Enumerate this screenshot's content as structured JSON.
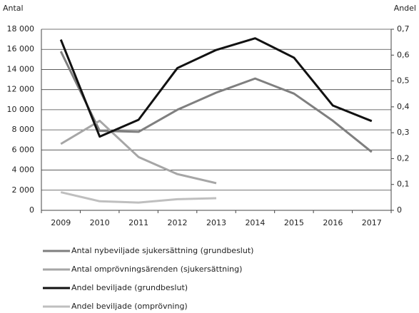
{
  "chart_data": {
    "type": "line",
    "y_label": "Antal",
    "y2_label": "Andel",
    "categories": [
      "2009",
      "2010",
      "2011",
      "2012",
      "2013",
      "2014",
      "2015",
      "2016",
      "2017"
    ],
    "series": [
      {
        "name": "Antal nybeviljade sjukersättning (grundbeslut)",
        "color": "#7f7f7f",
        "values": [
          15800,
          7900,
          7800,
          10000,
          11700,
          13100,
          11600,
          8900,
          5800
        ]
      },
      {
        "name": "Antal omprövningsärenden (sjukersättning)",
        "color": "#a6a6a6",
        "values": [
          6600,
          8900,
          5300,
          3600,
          2700,
          null,
          null,
          null,
          null
        ]
      },
      {
        "name": "Andel beviljade (grundbeslut)",
        "color": "#111111",
        "axis": "y2",
        "values": [
          0.66,
          0.285,
          0.35,
          0.55,
          0.62,
          0.665,
          0.59,
          0.405,
          0.345
        ]
      },
      {
        "name": "Andel beviljade (omprövning)",
        "color": "#bfbfbf",
        "axis": "y2",
        "values": [
          0.07,
          0.035,
          0.03,
          0.043,
          0.047,
          null,
          null,
          null,
          null
        ]
      }
    ],
    "ylim": [
      0,
      18000
    ],
    "yticks": [
      0,
      {
        "value": 2000,
        "label": "2 000"
      },
      {
        "value": 4000,
        "label": "4 000"
      },
      {
        "value": 6000,
        "label": "6 000"
      },
      {
        "value": 8000,
        "label": "8 000"
      },
      {
        "value": 10000,
        "label": "10 000"
      },
      {
        "value": 12000,
        "label": "12 000"
      },
      {
        "value": 14000,
        "label": "14 000"
      },
      {
        "value": 16000,
        "label": "16 000"
      },
      {
        "value": 18000,
        "label": "18 000"
      }
    ],
    "y2lim": [
      0,
      0.7
    ],
    "y2ticks": [
      0,
      {
        "value": 0.1,
        "label": "0,1"
      },
      {
        "value": 0.2,
        "label": "0,2"
      },
      {
        "value": 0.3,
        "label": "0,3"
      },
      {
        "value": 0.4,
        "label": "0,4"
      },
      {
        "value": 0.5,
        "label": "0,5"
      },
      {
        "value": 0.6,
        "label": "0,6"
      },
      {
        "value": 0.7,
        "label": "0,7"
      }
    ],
    "grid": true,
    "legend": "bottom"
  }
}
